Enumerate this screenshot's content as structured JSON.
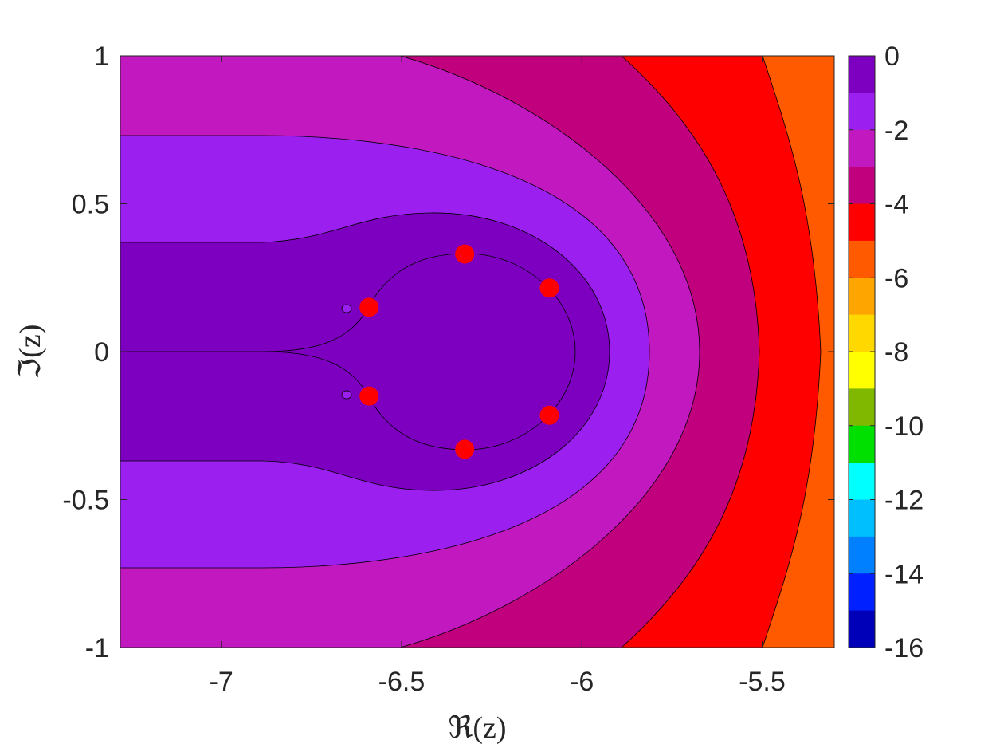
{
  "chart_data": {
    "type": "contour",
    "title": "",
    "xlabel": "ℜ(z)",
    "ylabel": "ℑ(z)",
    "xlim": [
      -7.28,
      -5.3
    ],
    "ylim": [
      -1,
      1
    ],
    "xticks": [
      -7,
      -6.5,
      -6,
      -5.5
    ],
    "xtick_labels": [
      "-7",
      "-6.5",
      "-6",
      "-5.5"
    ],
    "yticks": [
      1,
      0.5,
      0,
      -0.5,
      -1
    ],
    "ytick_labels": [
      "1",
      "0.5",
      "0",
      "-0.5",
      "-1"
    ],
    "grid": false,
    "colorbar": {
      "range": [
        -16,
        0
      ],
      "ticks": [
        0,
        -2,
        -4,
        -6,
        -8,
        -10,
        -12,
        -14,
        -16
      ],
      "tick_labels": [
        "0",
        "-2",
        "-4",
        "-6",
        "-8",
        "-10",
        "-12",
        "-14",
        "-16"
      ],
      "levels_from_top": [
        "#7d00c0",
        "#9b20f0",
        "#c118c0",
        "#c0007c",
        "#ff0000",
        "#ff5a00",
        "#ffa500",
        "#ffd800",
        "#ffff00",
        "#80b800",
        "#00e000",
        "#00ffff",
        "#00bfff",
        "#0080ff",
        "#0020ff",
        "#0000b8"
      ]
    },
    "contour_levels": [
      {
        "color": "#7d00c0",
        "right_edge_at_y0": -5.92,
        "neck_re": -6.85,
        "neck_im": 0.37,
        "top_im": 0.48
      },
      {
        "color": "#9b20f0",
        "right_edge_at_y0": -5.8,
        "left_im": 0.73,
        "top_re": -6.5
      },
      {
        "color": "#c118c0",
        "right_edge_at_y0": -5.66,
        "top_re_at_im1": -6.5
      },
      {
        "color": "#c0007c",
        "right_edge_at_y0": -5.5,
        "top_re_at_im1": -5.88
      },
      {
        "color": "#ff0000",
        "right_edge_at_y0": -5.33,
        "top_re_at_im1": -5.51
      },
      {
        "color": "#ff5a00"
      }
    ],
    "series": [
      {
        "marker": "filled-circle",
        "color": "#ff0000",
        "points": [
          [
            -6.325,
            0.33
          ],
          [
            -6.09,
            0.215
          ],
          [
            -6.59,
            0.15
          ],
          [
            -6.59,
            -0.15
          ],
          [
            -6.09,
            -0.215
          ],
          [
            -6.325,
            -0.33
          ]
        ]
      }
    ],
    "small_islands": [
      [
        -6.655,
        0.145
      ],
      [
        -6.655,
        -0.145
      ]
    ]
  }
}
